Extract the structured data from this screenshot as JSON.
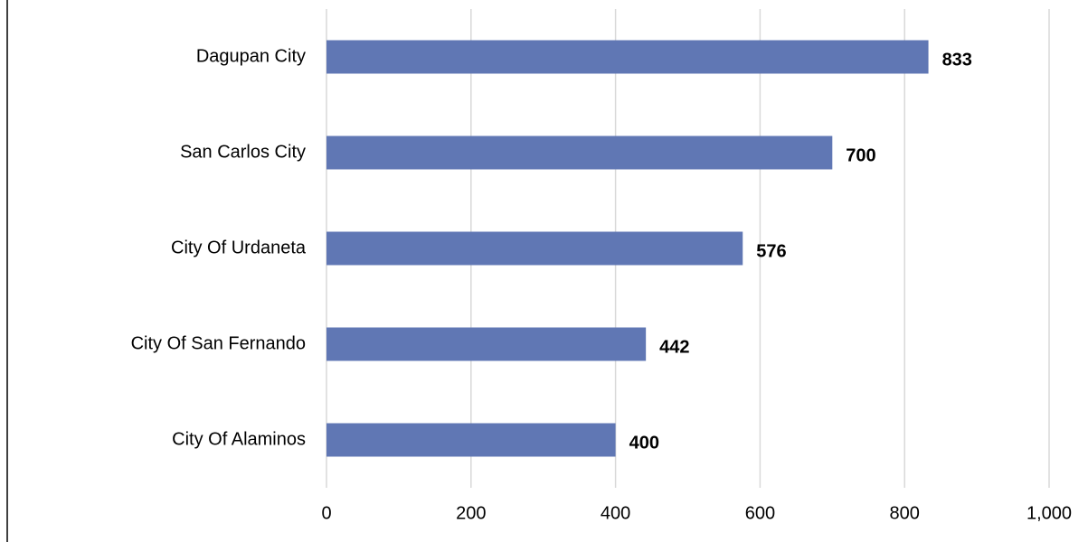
{
  "chart_data": {
    "type": "bar",
    "orientation": "horizontal",
    "categories": [
      "Dagupan City",
      "San Carlos City",
      "City Of Urdaneta",
      "City Of San Fernando",
      "City Of Alaminos"
    ],
    "values": [
      833,
      700,
      576,
      442,
      400
    ],
    "color": "#6077b4",
    "xlim": [
      0,
      1000
    ],
    "xticks": [
      0,
      200,
      400,
      600,
      800,
      {
        "value": 1000,
        "label": "1,000"
      }
    ],
    "grid": true
  }
}
